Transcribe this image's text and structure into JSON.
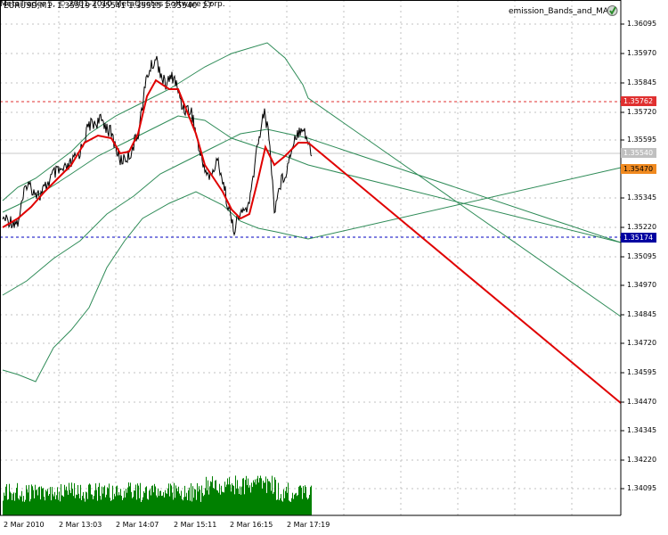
{
  "symbol_info": "EURUSD,M1  1.35519 1.35541 1.35515 1.35540  27",
  "indicator_name": "emission_Bands_and_MA",
  "copyright": "MetaTrader 5, © 2001-2010 MetaQuotes Software Corp.",
  "price_axis": {
    "ticks": [
      "1.36095",
      "1.35970",
      "1.35845",
      "1.35720",
      "1.35595",
      "1.35345",
      "1.35220",
      "1.35095",
      "1.34970",
      "1.34845",
      "1.34720",
      "1.34595",
      "1.34470",
      "1.34345",
      "1.34220",
      "1.34095"
    ],
    "min": 1.34,
    "max": 1.3615
  },
  "time_axis": {
    "ticks": [
      "2 Mar 2010",
      "2 Mar 13:03",
      "2 Mar 14:07",
      "2 Mar 15:11",
      "2 Mar 16:15",
      "2 Mar 17:19"
    ]
  },
  "price_tags": [
    {
      "name": "red-level-tag",
      "value": "1.35762",
      "bg": "#e03030",
      "color": "#ffffff"
    },
    {
      "name": "bid-tag",
      "value": "1.35540",
      "bg": "#c0c0c0",
      "color": "#ffffff"
    },
    {
      "name": "green-level-tag",
      "value": "1.35470",
      "bg": "#f08a20",
      "color": "#000000"
    },
    {
      "name": "blue-level-tag",
      "value": "1.35174",
      "bg": "#0000a0",
      "color": "#ffffff"
    }
  ],
  "levels": {
    "red_dashed": 1.35762,
    "blue_dashed": 1.35174,
    "bid": 1.3554
  },
  "colors": {
    "grid": "#c0c0c0",
    "price": "#000000",
    "ma": "#e00000",
    "bands": "#2e8b57",
    "volume": "#008000",
    "red_level": "#e03030",
    "blue_level": "#0000c0"
  },
  "icons": {
    "indicator": "indicator-icon"
  }
}
